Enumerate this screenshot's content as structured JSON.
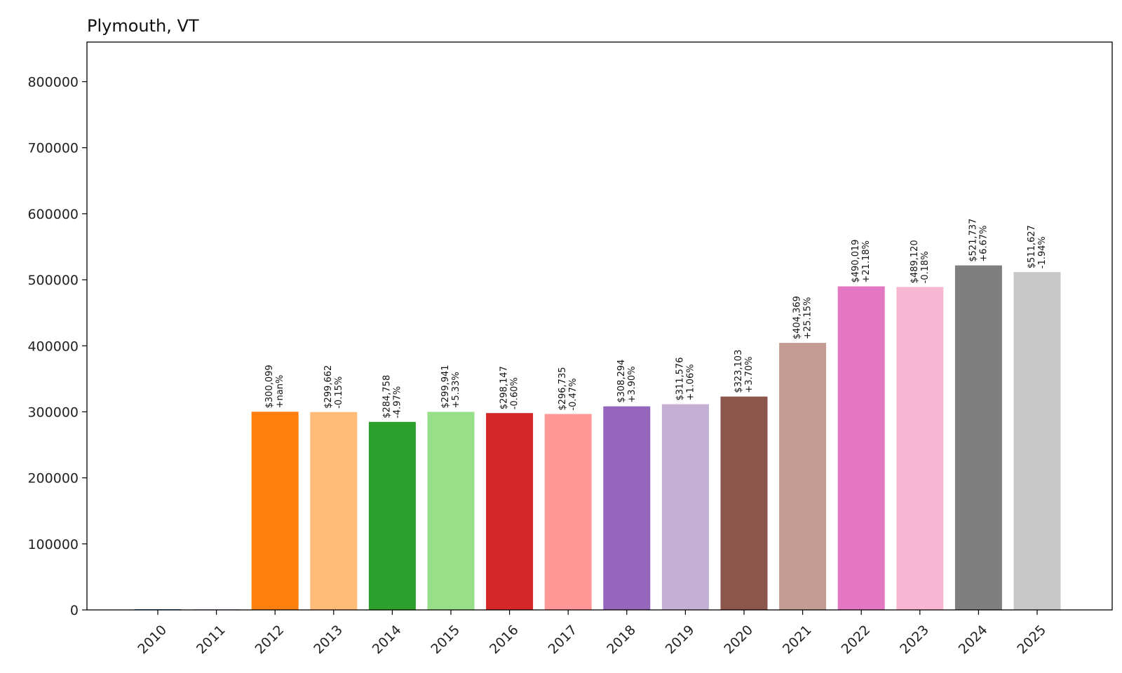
{
  "chart_data": {
    "type": "bar",
    "title": "Plymouth, VT",
    "xlabel": "",
    "ylabel": "",
    "ylim": [
      0,
      860000
    ],
    "yticks": [
      0,
      100000,
      200000,
      300000,
      400000,
      500000,
      600000,
      700000,
      800000
    ],
    "ytick_labels": [
      "0",
      "100000",
      "200000",
      "300000",
      "400000",
      "500000",
      "600000",
      "700000",
      "800000"
    ],
    "grid": false,
    "categories": [
      "2010",
      "2011",
      "2012",
      "2013",
      "2014",
      "2015",
      "2016",
      "2017",
      "2018",
      "2019",
      "2020",
      "2021",
      "2022",
      "2023",
      "2024",
      "2025"
    ],
    "values": [
      0,
      0,
      300099,
      299662,
      284758,
      299941,
      298147,
      296735,
      308294,
      311576,
      323103,
      404369,
      490019,
      489120,
      521737,
      511627
    ],
    "value_labels": [
      "",
      "",
      "$300,099",
      "$299,662",
      "$284,758",
      "$299,941",
      "$298,147",
      "$296,735",
      "$308,294",
      "$311,576",
      "$323,103",
      "$404,369",
      "$490,019",
      "$489,120",
      "$521,737",
      "$511,627"
    ],
    "change_labels": [
      "",
      "",
      "+nan%",
      "-0.15%",
      "-4.97%",
      "+5.33%",
      "-0.60%",
      "-0.47%",
      "+3.90%",
      "+1.06%",
      "+3.70%",
      "+25.15%",
      "+21.18%",
      "-0.18%",
      "+6.67%",
      "-1.94%"
    ],
    "colors": [
      "#1f77b4",
      "#aec7e8",
      "#ff7f0e",
      "#ffbb78",
      "#2ca02c",
      "#98df8a",
      "#d62728",
      "#ff9896",
      "#9467bd",
      "#c5b0d5",
      "#8c564b",
      "#c49c94",
      "#e377c2",
      "#f7b6d2",
      "#7f7f7f",
      "#c7c7c7"
    ]
  }
}
